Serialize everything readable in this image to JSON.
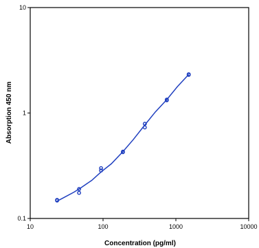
{
  "chart_data": {
    "type": "scatter",
    "title": "",
    "xlabel": "Concentration (pg/ml)",
    "ylabel": "Absorption 450 nm",
    "xscale": "log",
    "yscale": "log",
    "xlim": [
      10,
      10000
    ],
    "ylim": [
      0.1,
      10
    ],
    "x_ticks": [
      10,
      100,
      1000,
      10000
    ],
    "x_tick_labels": [
      "10",
      "100",
      "1000",
      "10000"
    ],
    "y_ticks": [
      0.1,
      1,
      10
    ],
    "y_tick_labels": [
      "0.1",
      "1",
      "10"
    ],
    "grid": false,
    "legend": "none",
    "series": [
      {
        "kind": "points",
        "color": "#1f3fbf",
        "x": [
          23.4,
          23.4,
          46.9,
          46.9,
          93.8,
          93.8,
          187.5,
          187.5,
          375,
          375,
          750,
          750,
          1500,
          1500
        ],
        "y": [
          0.15,
          0.148,
          0.19,
          0.175,
          0.3,
          0.285,
          0.43,
          0.425,
          0.79,
          0.73,
          1.34,
          1.32,
          2.33,
          2.3
        ]
      },
      {
        "kind": "fit-curve",
        "color": "#1f3fbf",
        "x": [
          23.4,
          30,
          40,
          50,
          70,
          93.8,
          130,
          187.5,
          260,
          375,
          520,
          750,
          1050,
          1500
        ],
        "y": [
          0.146,
          0.16,
          0.178,
          0.196,
          0.23,
          0.276,
          0.33,
          0.43,
          0.56,
          0.77,
          1.02,
          1.34,
          1.78,
          2.32
        ]
      }
    ]
  }
}
